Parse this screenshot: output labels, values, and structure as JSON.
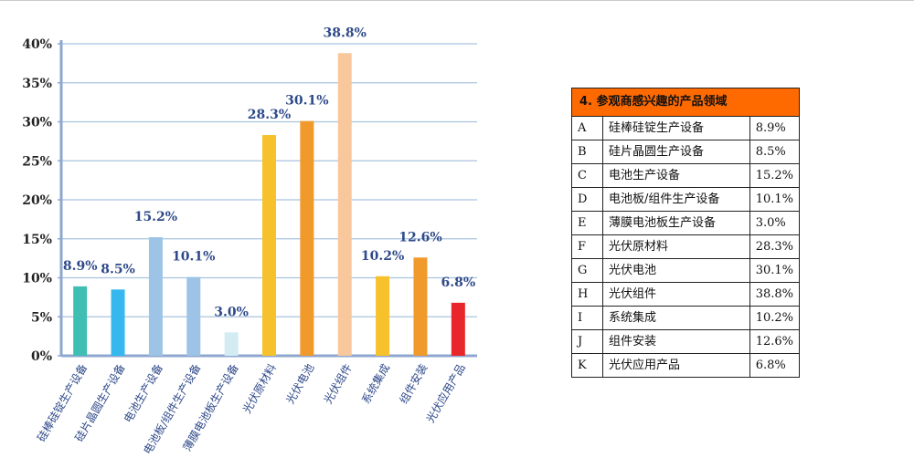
{
  "chart_data": {
    "type": "bar",
    "title": "4. 参观商感兴趣的产品领域",
    "categories": [
      "硅棒硅锭生产设备",
      "硅片晶圆生产设备",
      "电池生产设备",
      "电池板/组件生产设备",
      "薄膜电池板生产设备",
      "光伏原材料",
      "光伏电池",
      "光伏组件",
      "系统集成",
      "组件安装",
      "光伏应用产品"
    ],
    "values": [
      8.9,
      8.5,
      15.2,
      10.1,
      3.0,
      28.3,
      30.1,
      38.8,
      10.2,
      12.6,
      6.8
    ],
    "value_labels": [
      "8.9%",
      "8.5%",
      "15.2%",
      "10.1%",
      "3.0%",
      "28.3%",
      "30.1%",
      "38.8%",
      "10.2%",
      "12.6%",
      "6.8%"
    ],
    "bar_colors": [
      "#3fbfb3",
      "#36b8ee",
      "#9dc3e6",
      "#9dc3e6",
      "#d3ebf3",
      "#f7c12b",
      "#f09a2c",
      "#f9c79c",
      "#f7c12b",
      "#f09a2c",
      "#e8262c"
    ],
    "yticks": [
      "0%",
      "5%",
      "10%",
      "15%",
      "20%",
      "25%",
      "30%",
      "35%",
      "40%"
    ],
    "ylim": [
      0,
      40
    ],
    "xlabel": "",
    "ylabel": "",
    "grid": true
  },
  "table": {
    "title": "4. 参观商感兴趣的产品领域",
    "rows": [
      {
        "letter": "A",
        "name": "硅棒硅锭生产设备",
        "value": "8.9%"
      },
      {
        "letter": "B",
        "name": "硅片晶圆生产设备",
        "value": "8.5%"
      },
      {
        "letter": "C",
        "name": "电池生产设备",
        "value": "15.2%"
      },
      {
        "letter": "D",
        "name": "电池板/组件生产设备",
        "value": "10.1%"
      },
      {
        "letter": "E",
        "name": "薄膜电池板生产设备",
        "value": "3.0%"
      },
      {
        "letter": "F",
        "name": "光伏原材料",
        "value": "28.3%"
      },
      {
        "letter": "G",
        "name": "光伏电池",
        "value": "30.1%"
      },
      {
        "letter": "H",
        "name": "光伏组件",
        "value": "38.8%"
      },
      {
        "letter": "I",
        "name": "系统集成",
        "value": "10.2%"
      },
      {
        "letter": "J",
        "name": "组件安装",
        "value": "12.6%"
      },
      {
        "letter": "K",
        "name": "光伏应用产品",
        "value": "6.8%"
      }
    ]
  }
}
